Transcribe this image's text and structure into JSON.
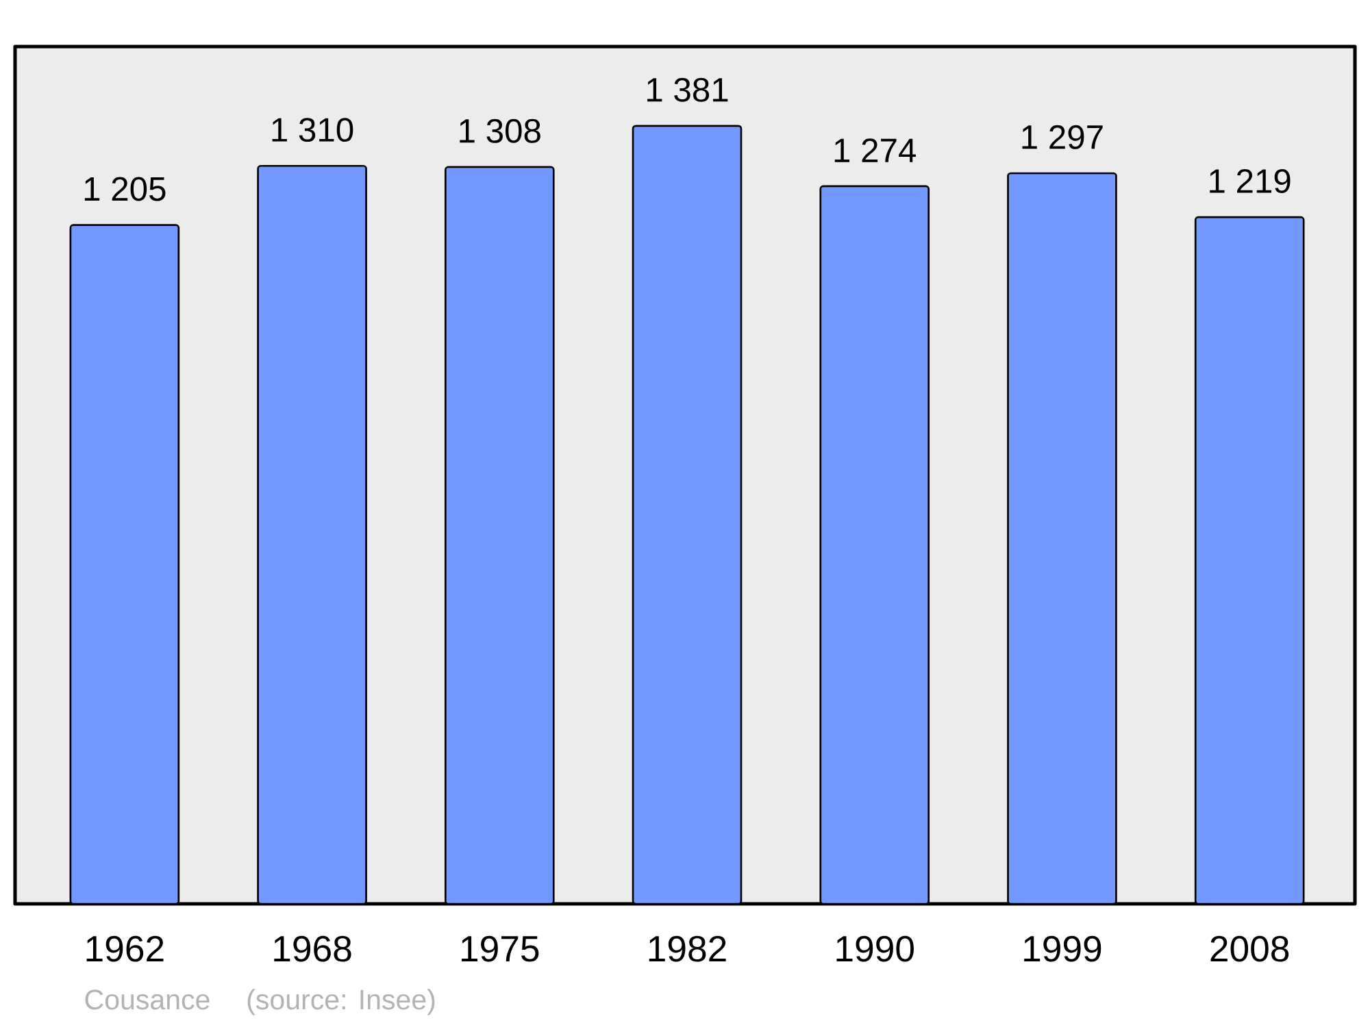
{
  "chart_data": {
    "type": "bar",
    "categories": [
      "1962",
      "1968",
      "1975",
      "1982",
      "1990",
      "1999",
      "2008"
    ],
    "values": [
      1205,
      1310,
      1308,
      1381,
      1274,
      1297,
      1219
    ],
    "value_labels": [
      "1 205",
      "1 310",
      "1 308",
      "1 381",
      "1 274",
      "1 297",
      "1 219"
    ],
    "color": "#7399ff",
    "tick_labels": "x",
    "annotations": [
      "Cousance",
      "(source: Insee)"
    ]
  }
}
